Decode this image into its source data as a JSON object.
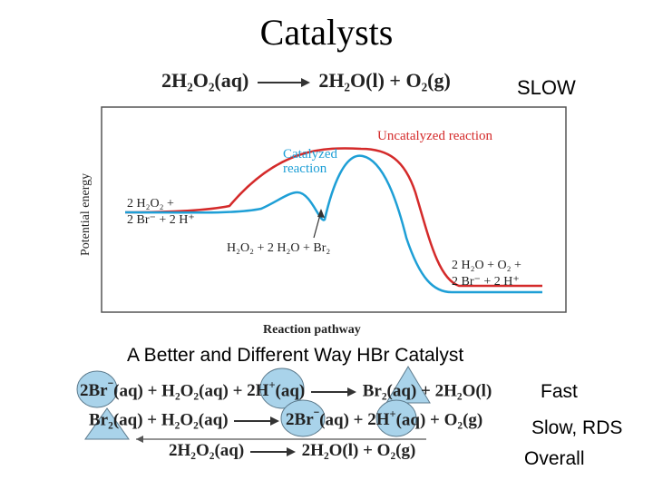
{
  "title": "Catalysts",
  "top_equation": {
    "reactant": "2H₂O₂(aq)",
    "product_1": "2H₂O(l)",
    "plus": "+",
    "product_2": "O₂(g)",
    "rate_label": "SLOW"
  },
  "diagram": {
    "uncatalyzed_label": "Uncatalyzed reaction",
    "catalyzed_label_line1": "Catalyzed",
    "catalyzed_label_line2": "reaction",
    "y_axis_label": "Potential energy",
    "x_axis_label": "Reaction pathway",
    "reactants_line1": "2 H₂O₂ +",
    "reactants_line2": "2 Br⁻ + 2 H⁺",
    "intermediate": "H₂O₂ + 2 H₂O + Br₂",
    "products_line1": "2 H₂O + O₂ +",
    "products_line2": "2 Br⁻ + 2 H⁺",
    "colors": {
      "uncatalyzed": "#d42a2a",
      "catalyzed": "#1e9fd6",
      "frame": "#555555"
    }
  },
  "subtitle": "A Better and Different Way HBr Catalyst",
  "steps": [
    {
      "equation": "2Br⁻(aq) + H₂O₂(aq) + 2H⁺(aq) → Br₂(aq) + 2H₂O(l)",
      "label": "Fast"
    },
    {
      "equation": "Br₂(aq) + H₂O₂(aq) → 2Br⁻(aq) + 2H⁺(aq) + O₂(g)",
      "label": "Slow, RDS"
    },
    {
      "equation": "2H₂O₂(aq) → 2H₂O(l) + O₂(g)",
      "label": "Overall"
    }
  ],
  "step_parts": {
    "s1_t1": "2Br",
    "s1_t1_sup": "⁻",
    "s1_t2": "(aq) + H₂O₂(aq) +",
    "s1_t3": "2H",
    "s1_t3_sup": "+",
    "s1_t4": "(aq)",
    "s1_t5": "Br₂",
    "s1_t6": "(aq) + 2H₂O(l)",
    "s2_t1": "Br₂",
    "s2_t2": "(aq) + H₂O₂(aq)",
    "s2_t3": "2Br",
    "s2_t3_sup": "⁻",
    "s2_t4": "(aq) +",
    "s2_t5": "2H",
    "s2_t5_sup": "+",
    "s2_t6": "(aq) + O₂(g)",
    "s3_t1": "2H₂O₂(aq)",
    "s3_t2": "2H₂O(l) + O₂(g)"
  },
  "colors": {
    "highlight_fill": "#a9d3ea",
    "highlight_stroke": "#5c7a8c"
  }
}
